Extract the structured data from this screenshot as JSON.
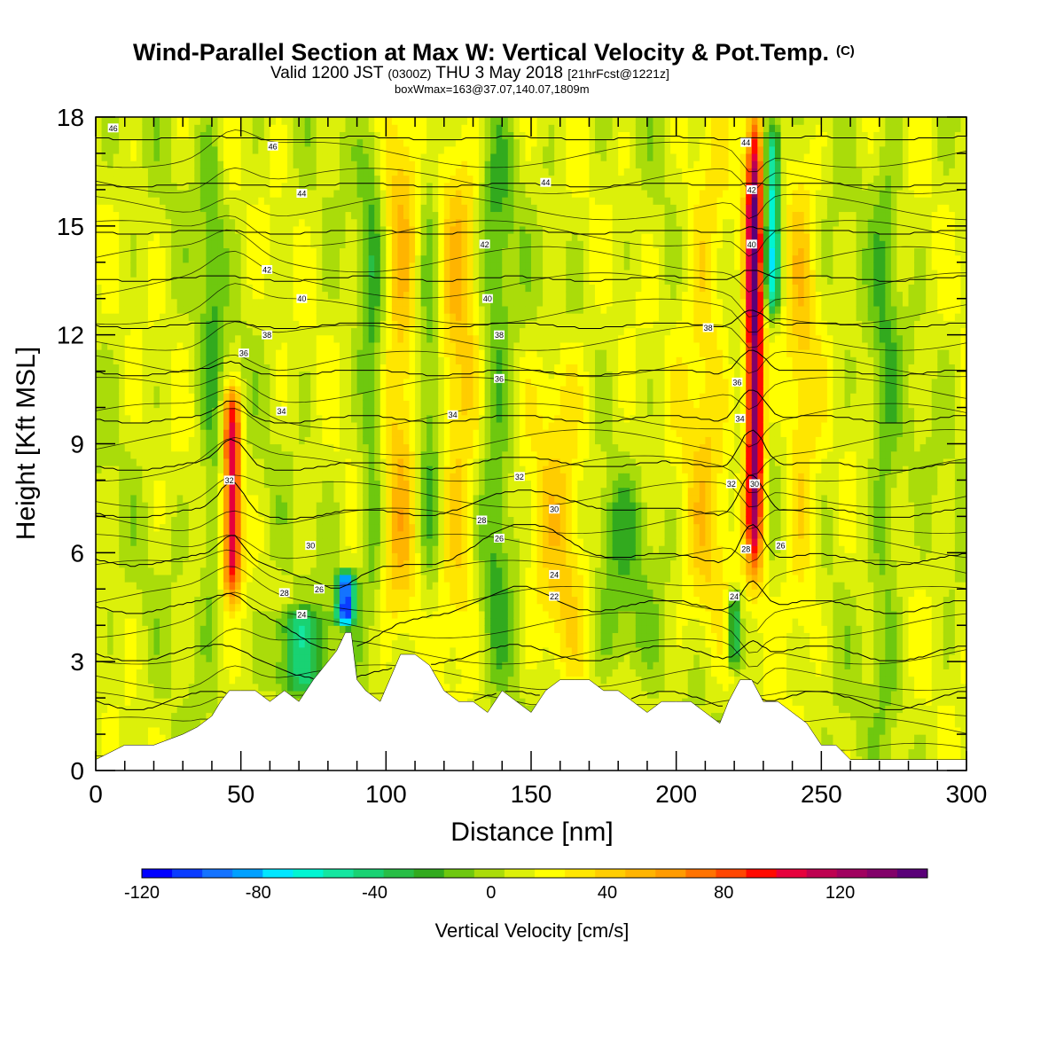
{
  "title": {
    "main": "Wind-Parallel Section at Max W: Vertical Velocity & Pot.Temp.",
    "main_tag": "(C)",
    "subtitle_a": "Valid 1200 JST ",
    "subtitle_b": "(0300Z)",
    "subtitle_c": " THU 3 May 2018 ",
    "subtitle_d": "[21hrFcst@1221z]",
    "subtitle2": "boxWmax=163@37.07,140.07,1809m"
  },
  "chart_data": {
    "type": "heatmap",
    "xlabel": "Distance [nm]",
    "ylabel": "Height [Kft MSL]",
    "xlim": [
      0,
      300
    ],
    "ylim": [
      0,
      18
    ],
    "xticks": [
      0,
      50,
      100,
      150,
      200,
      250,
      300
    ],
    "yticks": [
      0,
      3,
      6,
      9,
      12,
      15,
      18
    ],
    "colorbar": {
      "label": "Vertical Velocity [cm/s]",
      "min": -120,
      "max": 150,
      "step": 10,
      "ticks": [
        -120,
        -80,
        -40,
        0,
        40,
        80,
        120
      ],
      "colors": [
        "#0000ff",
        "#0a3cff",
        "#1473ff",
        "#00a0ff",
        "#00e6ff",
        "#00f5d2",
        "#14e6a0",
        "#19d273",
        "#28be46",
        "#32aa1e",
        "#6ec80f",
        "#aadc0a",
        "#dcf00a",
        "#ffff00",
        "#ffe600",
        "#ffcd00",
        "#ffb400",
        "#ff9b00",
        "#ff7300",
        "#ff4600",
        "#ff0a00",
        "#e6003c",
        "#be0050",
        "#a0005f",
        "#820069",
        "#5a0078"
      ]
    },
    "w_features": [
      {
        "x": 47,
        "z_bottom": 4.8,
        "z_top": 10.5,
        "w": 95,
        "width": 3
      },
      {
        "x": 227,
        "z_bottom": 5.5,
        "z_top": 18,
        "w": 130,
        "width": 3
      },
      {
        "x": 86,
        "z_bottom": 4.0,
        "z_top": 5.5,
        "w": -110,
        "width": 3
      },
      {
        "x": 233,
        "z_bottom": 12.5,
        "z_top": 18,
        "w": -75,
        "width": 3
      },
      {
        "x": 220,
        "z_bottom": 2.8,
        "z_top": 5.0,
        "w": -55,
        "width": 2
      },
      {
        "x": 70,
        "z_bottom": 2.0,
        "z_top": 4.5,
        "w": -45,
        "width": 10
      },
      {
        "x": 105,
        "z_bottom": 4.0,
        "z_top": 18,
        "w": 35,
        "width": 6
      },
      {
        "x": 125,
        "z_bottom": 3.0,
        "z_top": 18,
        "w": 30,
        "width": 7
      },
      {
        "x": 210,
        "z_bottom": 3.0,
        "z_top": 18,
        "w": 25,
        "width": 8
      },
      {
        "x": 160,
        "z_bottom": 2.5,
        "z_top": 12,
        "w": 25,
        "width": 10
      },
      {
        "x": 243,
        "z_bottom": 3.0,
        "z_top": 18,
        "w": 25,
        "width": 6
      },
      {
        "x": 40,
        "z_bottom": 4.0,
        "z_top": 18,
        "w": -22,
        "width": 4
      },
      {
        "x": 95,
        "z_bottom": 4.0,
        "z_top": 18,
        "w": -25,
        "width": 4
      },
      {
        "x": 115,
        "z_bottom": 4.0,
        "z_top": 18,
        "w": -22,
        "width": 4
      },
      {
        "x": 138,
        "z_bottom": 2.5,
        "z_top": 18,
        "w": -25,
        "width": 6
      },
      {
        "x": 180,
        "z_bottom": 2.5,
        "z_top": 8,
        "w": -20,
        "width": 10
      },
      {
        "x": 272,
        "z_bottom": 1.0,
        "z_top": 18,
        "w": -20,
        "width": 5
      }
    ],
    "terrain": {
      "x": [
        0,
        10,
        20,
        30,
        35,
        40,
        43,
        46,
        50,
        55,
        60,
        65,
        70,
        75,
        80,
        83,
        86,
        88,
        90,
        93,
        98,
        105,
        110,
        115,
        120,
        125,
        130,
        135,
        140,
        145,
        150,
        155,
        160,
        165,
        170,
        175,
        180,
        185,
        190,
        195,
        200,
        205,
        210,
        215,
        218,
        222,
        226,
        230,
        235,
        240,
        245,
        250,
        255,
        260,
        265,
        270,
        280,
        290,
        300
      ],
      "z": [
        0.3,
        0.7,
        0.7,
        1.0,
        1.2,
        1.5,
        1.9,
        2.2,
        2.2,
        2.2,
        1.9,
        2.2,
        1.9,
        2.5,
        3.0,
        3.3,
        3.8,
        3.8,
        2.5,
        2.2,
        1.9,
        3.2,
        3.2,
        2.9,
        2.2,
        1.9,
        1.9,
        1.6,
        2.2,
        1.9,
        1.6,
        2.2,
        2.5,
        2.5,
        2.5,
        2.2,
        2.2,
        1.9,
        1.6,
        1.9,
        1.9,
        1.9,
        1.6,
        1.3,
        1.9,
        2.5,
        2.5,
        1.9,
        1.9,
        1.6,
        1.3,
        0.7,
        0.7,
        0.3,
        0.3,
        0.3,
        0.3,
        0.3,
        0.3
      ]
    },
    "theta_levels": [
      22,
      24,
      26,
      28,
      30,
      32,
      34,
      36,
      38,
      40,
      42,
      44,
      46
    ],
    "theta_labels": [
      {
        "x": 6,
        "z": 17.7,
        "text": "46"
      },
      {
        "x": 61,
        "z": 17.2,
        "text": "46"
      },
      {
        "x": 71,
        "z": 15.9,
        "text": "44"
      },
      {
        "x": 155,
        "z": 16.2,
        "text": "44"
      },
      {
        "x": 59,
        "z": 13.8,
        "text": "42"
      },
      {
        "x": 71,
        "z": 13.0,
        "text": "40"
      },
      {
        "x": 59,
        "z": 12.0,
        "text": "38"
      },
      {
        "x": 51,
        "z": 11.5,
        "text": "36"
      },
      {
        "x": 64,
        "z": 9.9,
        "text": "34"
      },
      {
        "x": 134,
        "z": 14.5,
        "text": "42"
      },
      {
        "x": 135,
        "z": 13.0,
        "text": "40"
      },
      {
        "x": 139,
        "z": 12.0,
        "text": "38"
      },
      {
        "x": 139,
        "z": 10.8,
        "text": "36"
      },
      {
        "x": 123,
        "z": 9.8,
        "text": "34"
      },
      {
        "x": 146,
        "z": 8.1,
        "text": "32"
      },
      {
        "x": 158,
        "z": 7.2,
        "text": "30"
      },
      {
        "x": 133,
        "z": 6.9,
        "text": "28"
      },
      {
        "x": 139,
        "z": 6.4,
        "text": "26"
      },
      {
        "x": 158,
        "z": 5.4,
        "text": "24"
      },
      {
        "x": 158,
        "z": 4.8,
        "text": "22"
      },
      {
        "x": 46,
        "z": 8.0,
        "text": "32"
      },
      {
        "x": 74,
        "z": 6.2,
        "text": "30"
      },
      {
        "x": 65,
        "z": 4.9,
        "text": "28"
      },
      {
        "x": 77,
        "z": 5.0,
        "text": "26"
      },
      {
        "x": 71,
        "z": 4.3,
        "text": "24"
      },
      {
        "x": 224,
        "z": 17.3,
        "text": "44"
      },
      {
        "x": 226,
        "z": 16.0,
        "text": "42"
      },
      {
        "x": 226,
        "z": 14.5,
        "text": "40"
      },
      {
        "x": 211,
        "z": 12.2,
        "text": "38"
      },
      {
        "x": 221,
        "z": 10.7,
        "text": "36"
      },
      {
        "x": 222,
        "z": 9.7,
        "text": "34"
      },
      {
        "x": 219,
        "z": 7.9,
        "text": "32"
      },
      {
        "x": 227,
        "z": 7.9,
        "text": "30"
      },
      {
        "x": 224,
        "z": 6.1,
        "text": "28"
      },
      {
        "x": 236,
        "z": 6.2,
        "text": "26"
      },
      {
        "x": 220,
        "z": 4.8,
        "text": "24"
      }
    ]
  }
}
